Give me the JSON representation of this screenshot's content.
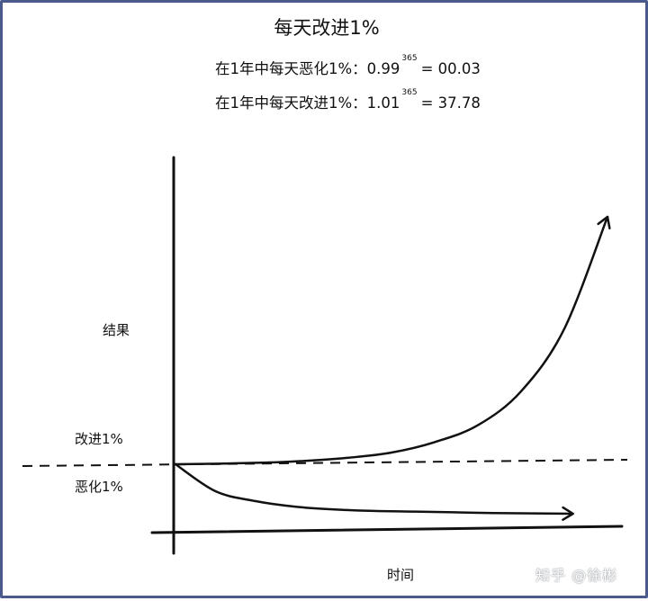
{
  "title": "每天改进1%",
  "formulas": [
    {
      "prefix": "在1年中每天恶化1%：0.99",
      "exponent": "365",
      "result": "= 00.03"
    },
    {
      "prefix": "在1年中每天改进1%：1.01",
      "exponent": "365",
      "result": "= 37.78"
    }
  ],
  "watermark": "知乎 @徐彬",
  "chart_data": {
    "type": "line",
    "title": "每天改进1%",
    "xlabel": "时间",
    "ylabel": "结果",
    "x": [
      0,
      0.1,
      0.2,
      0.3,
      0.4,
      0.5,
      0.6,
      0.7,
      0.8,
      0.9,
      1.0
    ],
    "series": [
      {
        "name": "改进1%",
        "values": [
          1.0,
          1.02,
          1.06,
          1.13,
          1.25,
          1.45,
          1.85,
          2.5,
          3.8,
          6.2,
          10.5
        ]
      },
      {
        "name": "恶化1%",
        "values": [
          1.0,
          0.62,
          0.48,
          0.4,
          0.36,
          0.34,
          0.33,
          0.32,
          0.31,
          0.305,
          0.3
        ]
      }
    ],
    "baseline": 1.0,
    "baseline_style": "dashed",
    "grid": false,
    "series_colors": [
      "#111111",
      "#111111"
    ]
  }
}
